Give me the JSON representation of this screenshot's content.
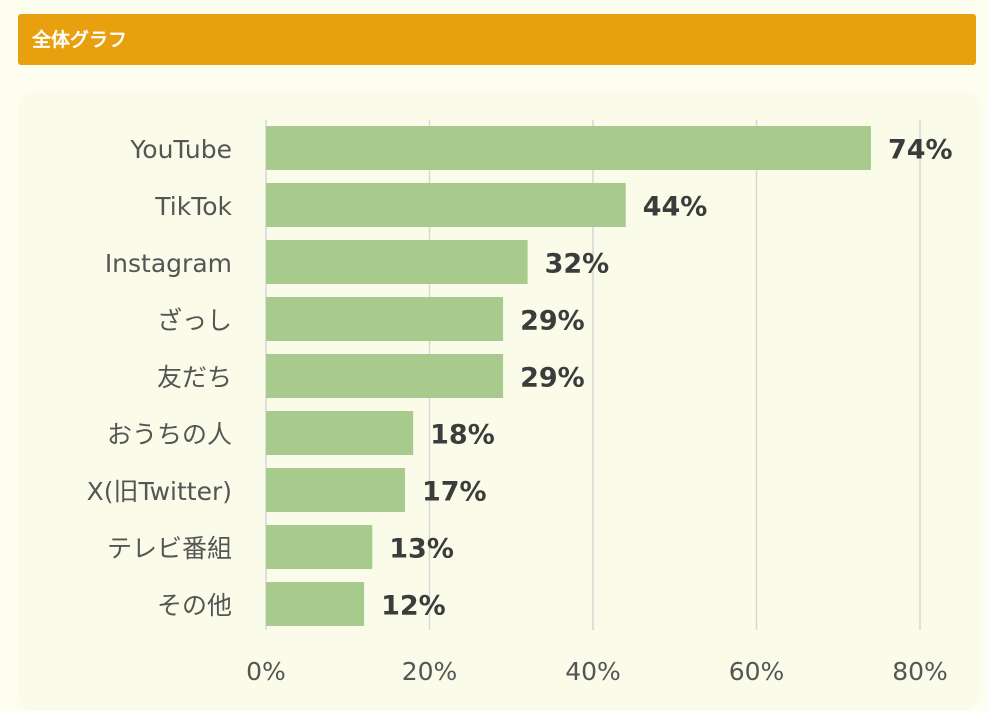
{
  "header": {
    "title": "全体グラフ"
  },
  "colors": {
    "header": "#e9a00e",
    "bar": "#a6cb8c",
    "grid": "#d6d6d6",
    "panel": "#fbfbea"
  },
  "chart_data": {
    "type": "bar",
    "orientation": "horizontal",
    "categories": [
      "YouTube",
      "TikTok",
      "Instagram",
      "ざっし",
      "友だち",
      "おうちの人",
      "X(旧Twitter)",
      "テレビ番組",
      "その他"
    ],
    "values": [
      74,
      44,
      32,
      29,
      29,
      18,
      17,
      13,
      12
    ],
    "value_labels": [
      "74%",
      "44%",
      "32%",
      "29%",
      "29%",
      "18%",
      "17%",
      "13%",
      "12%"
    ],
    "x_ticks": [
      "0%",
      "20%",
      "40%",
      "60%",
      "80%"
    ],
    "xlim": [
      0,
      80
    ],
    "grid": true,
    "legend": "none"
  }
}
